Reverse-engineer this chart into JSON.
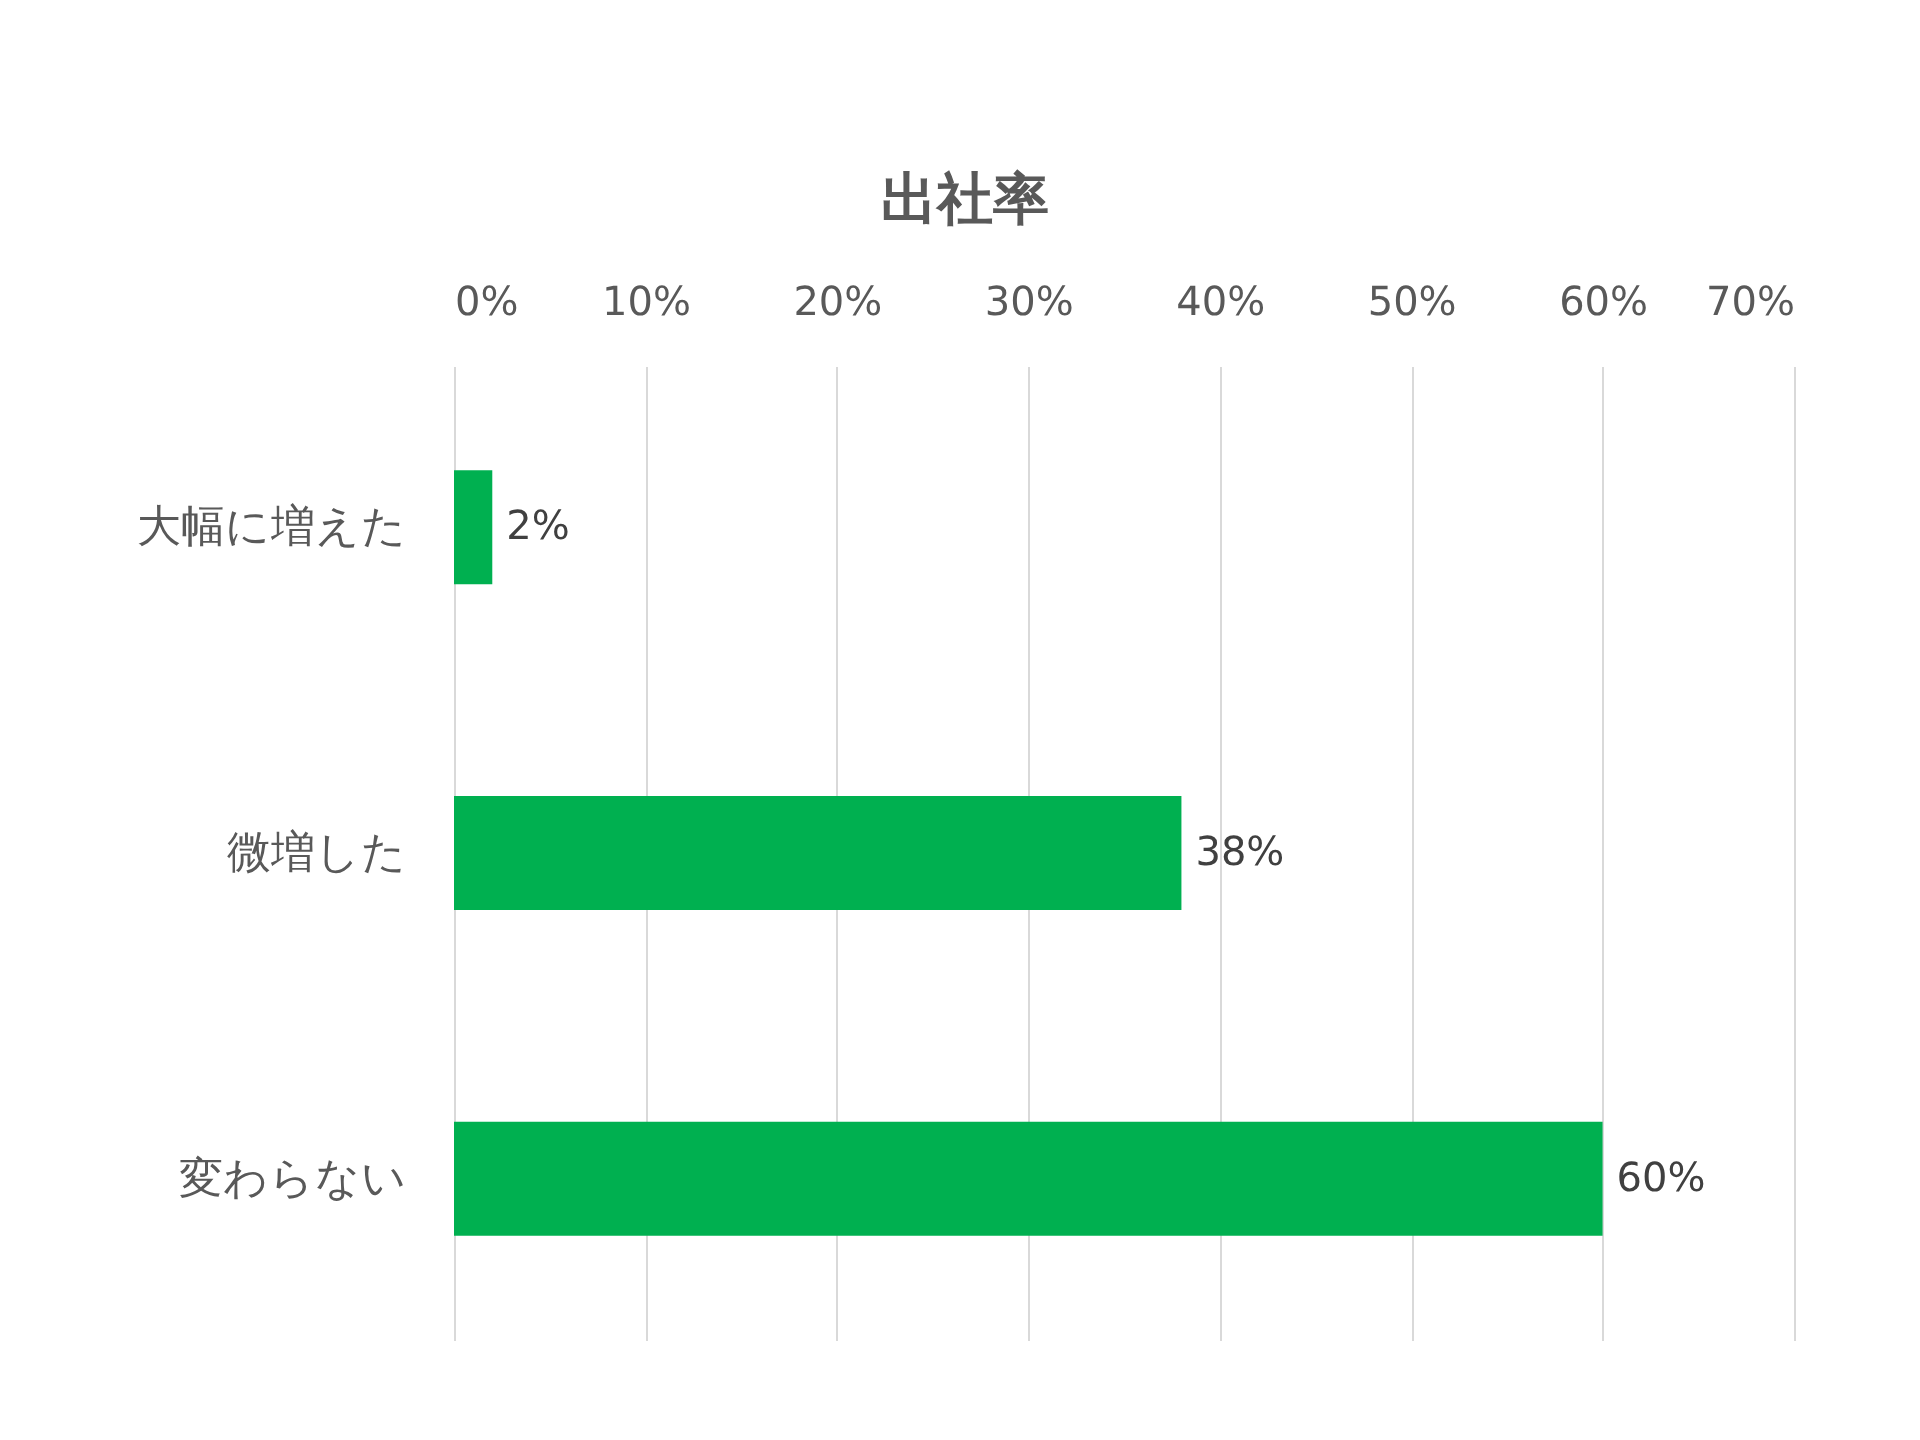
{
  "chart_data": {
    "type": "bar",
    "orientation": "horizontal",
    "title": "出社率",
    "categories": [
      "大幅に増えた",
      "微増した",
      "変わらない"
    ],
    "values": [
      2,
      38,
      60
    ],
    "color": "#00b050",
    "xlim": [
      0,
      70
    ],
    "xticks": [
      {
        "value": 0,
        "label": "0%"
      },
      {
        "value": 10,
        "label": "10%"
      },
      {
        "value": 20,
        "label": "20%"
      },
      {
        "value": 30,
        "label": "30%"
      },
      {
        "value": 40,
        "label": "40%"
      },
      {
        "value": 50,
        "label": "50%"
      },
      {
        "value": 60,
        "label": "60%"
      },
      {
        "value": 70,
        "label": "70%"
      }
    ],
    "value_labels": [
      "2%",
      "38%",
      "60%"
    ],
    "grid": "x"
  }
}
